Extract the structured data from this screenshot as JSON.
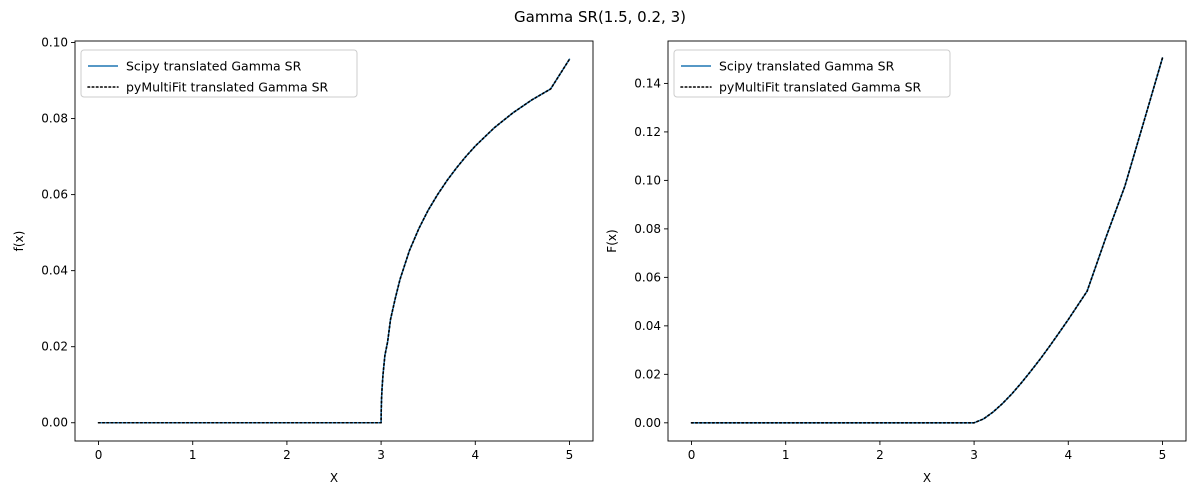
{
  "figure": {
    "title": "Gamma SR(1.5, 0.2, 3)",
    "colors": {
      "scipy": "#1f77b4",
      "pymultifit": "#000000",
      "axes": "#000000",
      "legend_border": "#cccccc"
    }
  },
  "chart_data": [
    {
      "type": "line",
      "title": "",
      "xlabel": "X",
      "ylabel": "f(x)",
      "xlim": [
        -0.25,
        5.25
      ],
      "ylim": [
        -0.0048,
        0.1004
      ],
      "xticks": [
        0,
        1,
        2,
        3,
        4,
        5
      ],
      "xtick_labels": [
        "0",
        "1",
        "2",
        "3",
        "4",
        "5"
      ],
      "yticks": [
        0.0,
        0.02,
        0.04,
        0.06,
        0.08,
        0.1
      ],
      "ytick_labels": [
        "0.00",
        "0.02",
        "0.04",
        "0.06",
        "0.08",
        "0.10"
      ],
      "legend": {
        "placement": "upper-left",
        "entries": [
          "Scipy translated Gamma SR",
          "pyMultiFit translated Gamma SR"
        ]
      },
      "grid": false,
      "series": [
        {
          "name": "Scipy translated Gamma SR",
          "style": "solid",
          "color": "#1f77b4",
          "x": [
            0,
            1,
            2,
            3,
            3.001,
            3.005,
            3.01,
            3.02,
            3.04,
            3.07,
            3.1,
            3.15,
            3.2,
            3.3,
            3.4,
            3.5,
            3.6,
            3.7,
            3.8,
            3.9,
            4.0,
            4.2,
            4.4,
            4.6,
            4.8,
            5.0
          ],
          "y": [
            0,
            0,
            0,
            0,
            0.00284,
            0.00633,
            0.00892,
            0.01256,
            0.01763,
            0.02139,
            0.02714,
            0.03267,
            0.03764,
            0.04521,
            0.05102,
            0.0559,
            0.06002,
            0.0637,
            0.06701,
            0.07002,
            0.07277,
            0.07754,
            0.08151,
            0.0849,
            0.08778,
            0.0956
          ]
        },
        {
          "name": "pyMultiFit translated Gamma SR",
          "style": "dotted",
          "color": "#000000",
          "x": [
            0,
            1,
            2,
            3,
            3.001,
            3.005,
            3.01,
            3.02,
            3.04,
            3.07,
            3.1,
            3.15,
            3.2,
            3.3,
            3.4,
            3.5,
            3.6,
            3.7,
            3.8,
            3.9,
            4.0,
            4.2,
            4.4,
            4.6,
            4.8,
            5.0
          ],
          "y": [
            0,
            0,
            0,
            0,
            0.00284,
            0.00633,
            0.00892,
            0.01256,
            0.01763,
            0.02139,
            0.02714,
            0.03267,
            0.03764,
            0.04521,
            0.05102,
            0.0559,
            0.06002,
            0.0637,
            0.06701,
            0.07002,
            0.07277,
            0.07754,
            0.08151,
            0.0849,
            0.08778,
            0.0956
          ]
        }
      ]
    },
    {
      "type": "line",
      "title": "",
      "xlabel": "X",
      "ylabel": "F(x)",
      "xlim": [
        -0.25,
        5.25
      ],
      "ylim": [
        -0.0075,
        0.1575
      ],
      "xticks": [
        0,
        1,
        2,
        3,
        4,
        5
      ],
      "xtick_labels": [
        "0",
        "1",
        "2",
        "3",
        "4",
        "5"
      ],
      "yticks": [
        0.0,
        0.02,
        0.04,
        0.06,
        0.08,
        0.1,
        0.12,
        0.14
      ],
      "ytick_labels": [
        "0.00",
        "0.02",
        "0.04",
        "0.06",
        "0.08",
        "0.10",
        "0.12",
        "0.14"
      ],
      "legend": {
        "placement": "upper-left",
        "entries": [
          "Scipy translated Gamma SR",
          "pyMultiFit translated Gamma SR"
        ]
      },
      "grid": false,
      "series": [
        {
          "name": "Scipy translated Gamma SR",
          "style": "solid",
          "color": "#1f77b4",
          "x": [
            0,
            1,
            2,
            3,
            3.1,
            3.2,
            3.3,
            3.4,
            3.5,
            3.6,
            3.7,
            3.8,
            3.9,
            4.0,
            4.2,
            4.4,
            4.6,
            4.8,
            5.0
          ],
          "y": [
            0,
            0,
            0,
            0,
            0.0016,
            0.0044,
            0.0079,
            0.0119,
            0.0164,
            0.0212,
            0.0262,
            0.0315,
            0.037,
            0.0426,
            0.0543,
            0.0765,
            0.0975,
            0.1239,
            0.1505
          ]
        },
        {
          "name": "pyMultiFit translated Gamma SR",
          "style": "dotted",
          "color": "#000000",
          "x": [
            0,
            1,
            2,
            3,
            3.1,
            3.2,
            3.3,
            3.4,
            3.5,
            3.6,
            3.7,
            3.8,
            3.9,
            4.0,
            4.2,
            4.4,
            4.6,
            4.8,
            5.0
          ],
          "y": [
            0,
            0,
            0,
            0,
            0.0016,
            0.0044,
            0.0079,
            0.0119,
            0.0164,
            0.0212,
            0.0262,
            0.0315,
            0.037,
            0.0426,
            0.0543,
            0.0765,
            0.0975,
            0.1239,
            0.1505
          ]
        }
      ]
    }
  ]
}
